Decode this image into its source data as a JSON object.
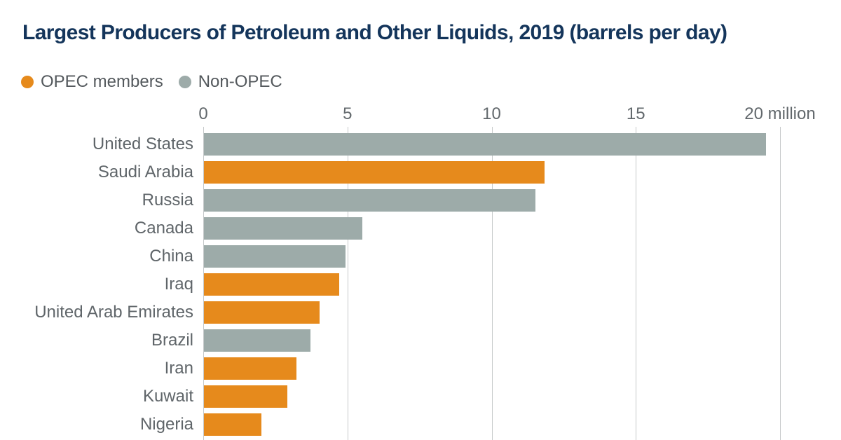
{
  "title": "Largest Producers of Petroleum and Other Liquids, 2019 (barrels per day)",
  "legend": {
    "items": [
      {
        "id": "opec",
        "label": "OPEC members",
        "color": "#E68A1C"
      },
      {
        "id": "non_opec",
        "label": "Non-OPEC",
        "color": "#9DABA9"
      }
    ]
  },
  "chart_data": {
    "type": "bar",
    "orientation": "horizontal",
    "title": "Largest Producers of Petroleum and Other Liquids, 2019 (barrels per day)",
    "unit": "million barrels per day",
    "xlabel": "",
    "ylabel": "",
    "xlim": [
      0,
      22.1
    ],
    "grid": true,
    "legend_position": "top-left",
    "xticks": [
      {
        "value": 0,
        "label": "0"
      },
      {
        "value": 5,
        "label": "5"
      },
      {
        "value": 10,
        "label": "10"
      },
      {
        "value": 15,
        "label": "15"
      },
      {
        "value": 20,
        "label": "20 million"
      }
    ],
    "series": [
      {
        "category": "United States",
        "value": 19.5,
        "group": "non_opec"
      },
      {
        "category": "Saudi Arabia",
        "value": 11.8,
        "group": "opec"
      },
      {
        "category": "Russia",
        "value": 11.5,
        "group": "non_opec"
      },
      {
        "category": "Canada",
        "value": 5.5,
        "group": "non_opec"
      },
      {
        "category": "China",
        "value": 4.9,
        "group": "non_opec"
      },
      {
        "category": "Iraq",
        "value": 4.7,
        "group": "opec"
      },
      {
        "category": "United Arab Emirates",
        "value": 4.0,
        "group": "opec"
      },
      {
        "category": "Brazil",
        "value": 3.7,
        "group": "non_opec"
      },
      {
        "category": "Iran",
        "value": 3.2,
        "group": "opec"
      },
      {
        "category": "Kuwait",
        "value": 2.9,
        "group": "opec"
      },
      {
        "category": "Nigeria",
        "value": 2.0,
        "group": "opec"
      }
    ]
  }
}
